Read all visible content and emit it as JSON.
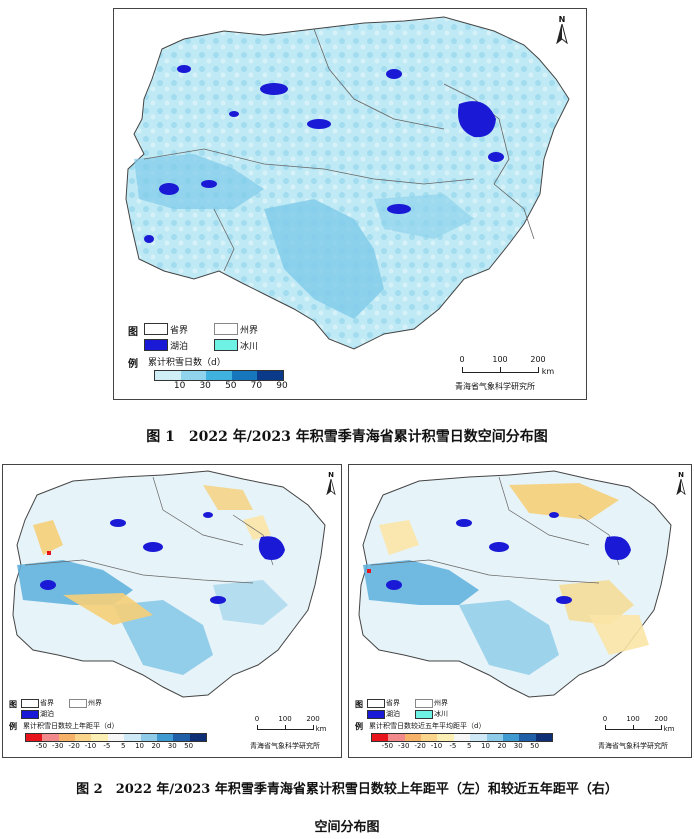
{
  "fig1": {
    "legend": {
      "head_top": "图",
      "head_bottom": "例",
      "province_label": "省界",
      "prefecture_label": "州界",
      "lake_label": "湖泊",
      "glacier_label": "冰川",
      "ramp_title": "累计积雪日数（d）",
      "ticks": [
        "10",
        "30",
        "50",
        "70",
        "90"
      ],
      "colors": [
        "#cfeef6",
        "#8fd3ec",
        "#3fb2e0",
        "#1777bd",
        "#0c3a8a"
      ]
    },
    "north": "N",
    "scale": {
      "ticks": [
        "0",
        "100",
        "200"
      ],
      "unit": "km"
    },
    "org": "青海省气象科学研究所"
  },
  "fig2": {
    "left": {
      "legend": {
        "head_top": "图",
        "head_bottom": "例",
        "province_label": "省界",
        "prefecture_label": "州界",
        "lake_label": "湖泊",
        "ramp_title": "累计积雪日数较上年距平（d）",
        "ticks": [
          "-50",
          "-30",
          "-20",
          "-10",
          "-5",
          "5",
          "10",
          "20",
          "30",
          "50"
        ]
      },
      "north": "N",
      "scale": {
        "ticks": [
          "0",
          "100",
          "200"
        ],
        "unit": "km"
      },
      "org": "青海省气象科学研究所"
    },
    "right": {
      "legend": {
        "head_top": "图",
        "head_bottom": "例",
        "province_label": "省界",
        "prefecture_label": "州界",
        "lake_label": "湖泊",
        "glacier_label": "冰川",
        "ramp_title": "累计积雪日数较近五年平均距平（d）",
        "ticks": [
          "-50",
          "-30",
          "-20",
          "-10",
          "-5",
          "5",
          "10",
          "20",
          "30",
          "50"
        ]
      },
      "north": "N",
      "scale": {
        "ticks": [
          "0",
          "100",
          "200"
        ],
        "unit": "km"
      },
      "org": "青海省气象科学研究所"
    },
    "anomaly_colors": [
      "#e8141b",
      "#f28a8c",
      "#f7b26a",
      "#fbd58c",
      "#fbefb4",
      "#f6f6f6",
      "#cfeaf6",
      "#8dcbe8",
      "#3f9ad2",
      "#1e5fa8",
      "#0e2f75"
    ]
  },
  "captions": {
    "fig1": "图 1　2022 年/2023 年积雪季青海省累计积雪日数空间分布图",
    "fig2_line1": "图 2　2022 年/2023 年积雪季青海省累计积雪日数较上年距平（左）和较近五年距平（右）",
    "fig2_line2": "空间分布图"
  }
}
